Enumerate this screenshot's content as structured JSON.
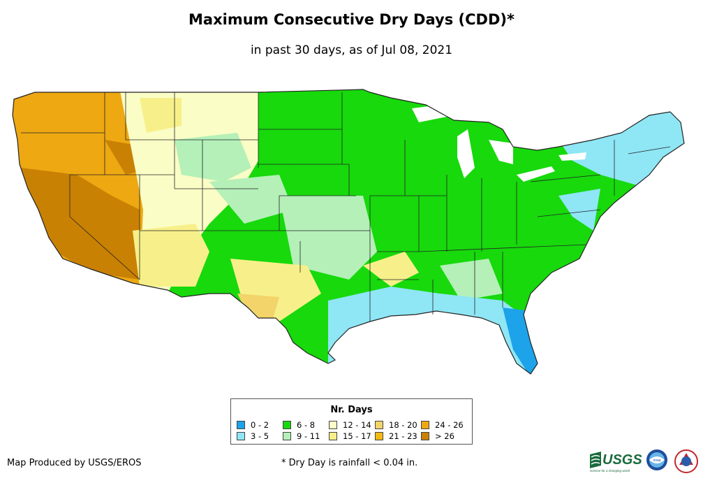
{
  "title": "Maximum Consecutive Dry Days (CDD)*",
  "subtitle": "in past 30 days, as of Jul 08, 2021",
  "legend": {
    "title": "Nr. Days",
    "items": [
      {
        "label": "0 - 2",
        "color": "#1ca3ea"
      },
      {
        "label": "3 - 5",
        "color": "#8fe6f5"
      },
      {
        "label": "6 - 8",
        "color": "#17d90c"
      },
      {
        "label": "9 - 11",
        "color": "#b4f0b8"
      },
      {
        "label": "12 - 14",
        "color": "#fafdc6"
      },
      {
        "label": "15 - 17",
        "color": "#f7f08a"
      },
      {
        "label": "18 - 20",
        "color": "#f2d46a"
      },
      {
        "label": "21 - 23",
        "color": "#f5b914"
      },
      {
        "label": "24 - 26",
        "color": "#eda812"
      },
      {
        "label": "> 26",
        "color": "#c98104"
      }
    ]
  },
  "credit": "Map Produced by USGS/EROS",
  "footnote": "* Dry Day is rainfall < 0.04 in.",
  "logos": {
    "usgs_text": "USGS",
    "usgs_tagline": "science for a changing world",
    "noaa_text": "noaa"
  }
}
